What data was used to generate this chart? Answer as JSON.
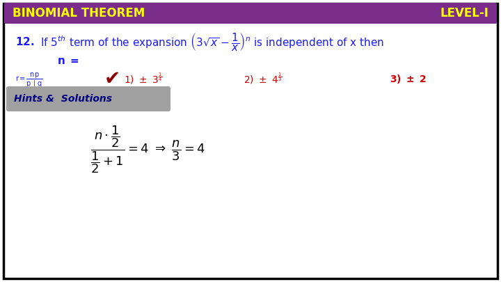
{
  "bg_color": "#ffffff",
  "border_color": "#000000",
  "header_bg": "#7b2d8b",
  "header_text_left": "BINOMIAL THEOREM",
  "header_text_right": "LEVEL-I",
  "header_text_color": "#ffff00",
  "question_color": "#1a1aff",
  "answer_color": "#cc0000",
  "hints_bg": "#a0a0a0",
  "hints_text": "Hints &  Solutions",
  "hints_text_color": "#000080",
  "solution_color": "#000000"
}
